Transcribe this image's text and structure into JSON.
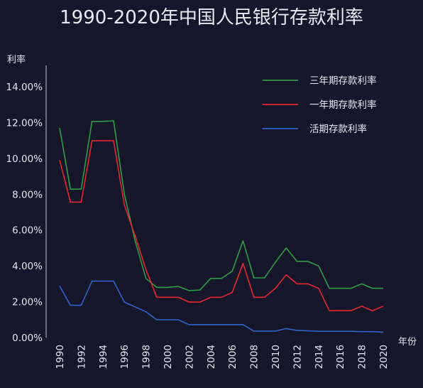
{
  "chart_data": {
    "type": "line",
    "title": "1990-2020年中国人民银行存款利率",
    "xlabel": "年份",
    "ylabel": "利率",
    "x": [
      1990,
      1991,
      1992,
      1993,
      1994,
      1995,
      1996,
      1997,
      1998,
      1999,
      2000,
      2001,
      2002,
      2003,
      2004,
      2005,
      2006,
      2007,
      2008,
      2009,
      2010,
      2011,
      2012,
      2013,
      2014,
      2015,
      2016,
      2017,
      2018,
      2019,
      2020
    ],
    "xticks": [
      "1990",
      "1992",
      "1994",
      "1996",
      "1998",
      "2000",
      "2002",
      "2004",
      "2006",
      "2008",
      "2010",
      "2012",
      "2014",
      "2016",
      "2018",
      "2020"
    ],
    "yticks": [
      "0.00%",
      "2.00%",
      "4.00%",
      "6.00%",
      "8.00%",
      "10.00%",
      "12.00%",
      "14.00%"
    ],
    "ylim": [
      0,
      14
    ],
    "legend_position": "top-right",
    "series": [
      {
        "name": "三年期存款利率",
        "color": "#2f9a48",
        "values": [
          11.7,
          8.28,
          8.28,
          12.06,
          12.06,
          12.1,
          8.0,
          5.4,
          3.3,
          2.8,
          2.8,
          2.85,
          2.62,
          2.65,
          3.3,
          3.3,
          3.7,
          5.4,
          3.33,
          3.33,
          4.2,
          5.0,
          4.25,
          4.25,
          4.0,
          2.75,
          2.75,
          2.75,
          3.0,
          2.75,
          2.75
        ]
      },
      {
        "name": "一年期存款利率",
        "color": "#e5262f",
        "values": [
          9.9,
          7.56,
          7.56,
          10.98,
          10.98,
          10.98,
          7.4,
          5.67,
          3.8,
          2.25,
          2.25,
          2.25,
          1.98,
          1.98,
          2.25,
          2.25,
          2.52,
          4.14,
          2.25,
          2.25,
          2.75,
          3.5,
          3.0,
          3.0,
          2.75,
          1.5,
          1.5,
          1.5,
          1.75,
          1.5,
          1.75
        ]
      },
      {
        "name": "活期存款利率",
        "color": "#2f63c9",
        "values": [
          2.88,
          1.8,
          1.8,
          3.15,
          3.15,
          3.15,
          1.98,
          1.71,
          1.44,
          0.99,
          0.99,
          0.99,
          0.72,
          0.72,
          0.72,
          0.72,
          0.72,
          0.72,
          0.36,
          0.36,
          0.36,
          0.5,
          0.4,
          0.38,
          0.35,
          0.35,
          0.35,
          0.35,
          0.33,
          0.33,
          0.3
        ]
      }
    ]
  }
}
